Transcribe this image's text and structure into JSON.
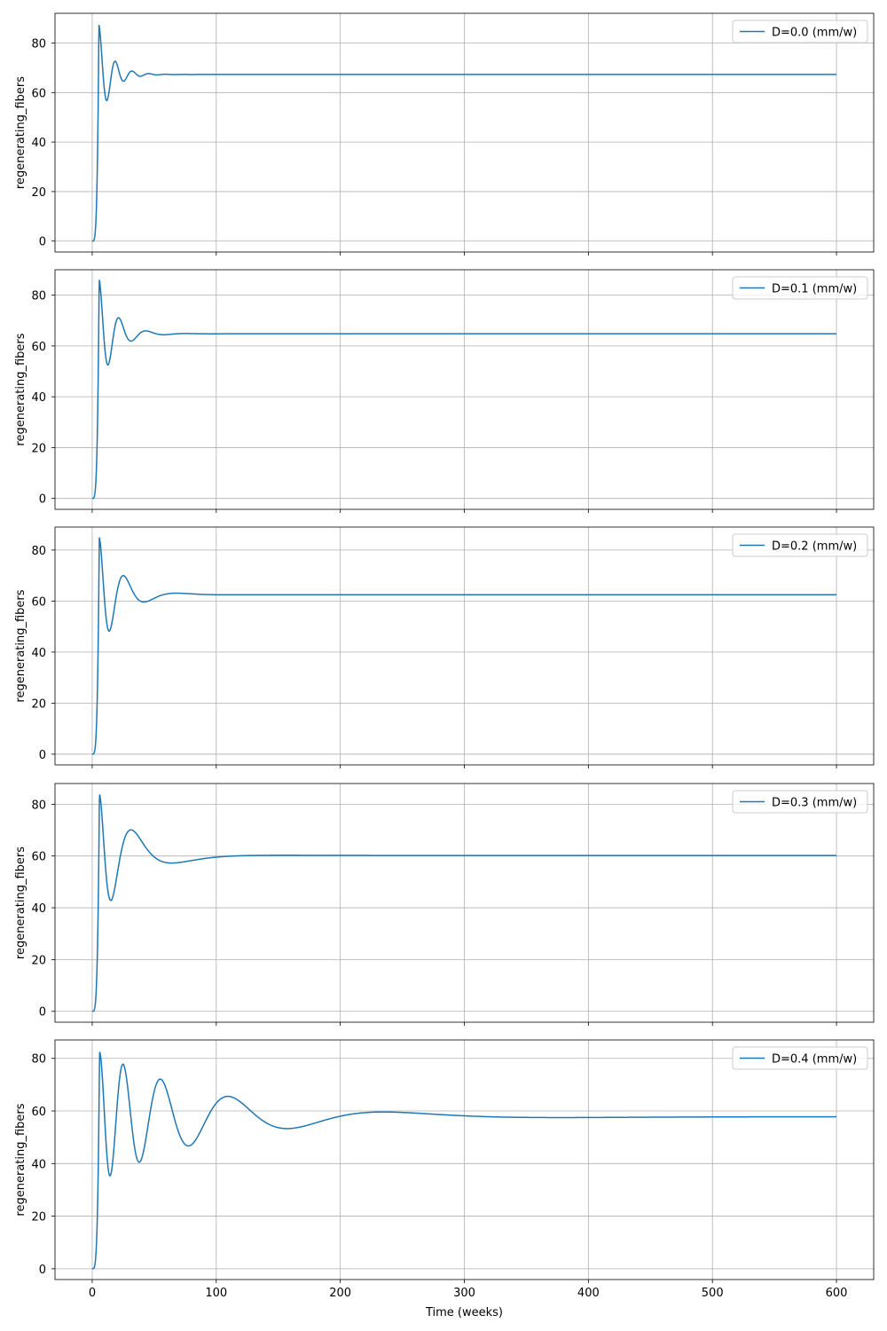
{
  "chart_data": [
    {
      "type": "line",
      "ylabel": "regenerating_fibers",
      "xlabel": "",
      "legend": "top-right",
      "grid": true,
      "xlim": [
        -30,
        630
      ],
      "ylim": [
        -4.4,
        92
      ],
      "yticks": [
        0,
        20,
        40,
        60,
        80
      ],
      "xticks": [
        0,
        100,
        200,
        300,
        400,
        500,
        600
      ],
      "color": "#1f77b4",
      "series": [
        {
          "name": "D=0.0 (mm/w)",
          "peak": 87.5,
          "peak_t": 5.4,
          "steady": 67.3,
          "first_amp": 16,
          "decay_weeks": 10,
          "period_start": 13.5,
          "period_growth": 0
        }
      ],
      "x": [
        0,
        2,
        4,
        5.4,
        10,
        13,
        18,
        24,
        31,
        37,
        44,
        60,
        80,
        120,
        300,
        600
      ],
      "y": [
        0,
        12,
        70,
        87.5,
        67,
        57.5,
        73,
        65,
        69,
        66,
        68,
        67.2,
        67.3,
        67.3,
        67.3,
        67.3
      ]
    },
    {
      "type": "line",
      "ylabel": "regenerating_fibers",
      "xlabel": "",
      "legend": "top-right",
      "grid": true,
      "xlim": [
        -30,
        630
      ],
      "ylim": [
        -4.3,
        90
      ],
      "yticks": [
        0,
        20,
        40,
        60,
        80
      ],
      "xticks": [
        0,
        100,
        200,
        300,
        400,
        500,
        600
      ],
      "color": "#1f77b4",
      "series": [
        {
          "name": "D=0.1 (mm/w)",
          "peak": 86.3,
          "peak_t": 5.6,
          "steady": 64.8,
          "first_amp": 16.5,
          "decay_weeks": 13,
          "period_start": 14,
          "period_growth": 0.01
        }
      ],
      "x": [
        0,
        2,
        4,
        5.6,
        10,
        14,
        19,
        25,
        33,
        39,
        47,
        60,
        90,
        120,
        300,
        600
      ],
      "y": [
        0,
        10,
        65,
        86.3,
        66,
        52,
        72,
        60.5,
        68,
        63,
        66,
        64.5,
        64.8,
        64.8,
        64.8,
        64.8
      ]
    },
    {
      "type": "line",
      "ylabel": "regenerating_fibers",
      "xlabel": "",
      "legend": "top-right",
      "grid": true,
      "xlim": [
        -30,
        630
      ],
      "ylim": [
        -4.2,
        89
      ],
      "yticks": [
        0,
        20,
        40,
        60,
        80
      ],
      "xticks": [
        0,
        100,
        200,
        300,
        400,
        500,
        600
      ],
      "color": "#1f77b4",
      "series": [
        {
          "name": "D=0.2 (mm/w)",
          "peak": 85,
          "peak_t": 5.7,
          "steady": 62.5,
          "first_amp": 17,
          "decay_weeks": 18,
          "period_start": 14.5,
          "period_growth": 0.02
        }
      ],
      "x": [
        0,
        2,
        4,
        5.7,
        10,
        15,
        20,
        27,
        34,
        41,
        48,
        60,
        80,
        120,
        300,
        600
      ],
      "y": [
        0,
        9,
        60,
        85,
        63,
        47,
        72,
        56,
        67,
        59.5,
        65,
        61.5,
        62.5,
        62.5,
        62.5,
        62.5
      ]
    },
    {
      "type": "line",
      "ylabel": "regenerating_fibers",
      "xlabel": "",
      "legend": "top-right",
      "grid": true,
      "xlim": [
        -30,
        630
      ],
      "ylim": [
        -4.2,
        88
      ],
      "yticks": [
        0,
        20,
        40,
        60,
        80
      ],
      "xticks": [
        0,
        100,
        200,
        300,
        400,
        500,
        600
      ],
      "color": "#1f77b4",
      "series": [
        {
          "name": "D=0.3 (mm/w)",
          "peak": 84,
          "peak_t": 5.8,
          "steady": 60.2,
          "first_amp": 19,
          "decay_weeks": 30,
          "period_start": 15,
          "period_growth": 0.03
        }
      ],
      "x": [
        0,
        2,
        4,
        5.8,
        10,
        17,
        22,
        30,
        36,
        45,
        52,
        80,
        120,
        200,
        400,
        600
      ],
      "y": [
        0,
        8,
        55,
        84,
        62,
        41.5,
        72,
        50,
        67.5,
        54.5,
        65,
        59.5,
        60.5,
        60.2,
        60.2,
        60.2
      ]
    },
    {
      "type": "line",
      "ylabel": "regenerating_fibers",
      "xlabel": "Time (weeks)",
      "legend": "top-right",
      "grid": true,
      "xlim": [
        -30,
        630
      ],
      "ylim": [
        -4.1,
        87
      ],
      "yticks": [
        0,
        20,
        40,
        60,
        80
      ],
      "xticks": [
        0,
        100,
        200,
        300,
        400,
        500,
        600
      ],
      "color": "#1f77b4",
      "series": [
        {
          "name": "D=0.4 (mm/w)",
          "peak": 82.5,
          "peak_t": 5.9,
          "steady": 57.8,
          "first_amp": 23,
          "decay_weeks": 90,
          "period_start": 15.5,
          "period_growth": 0.012
        }
      ],
      "x": [
        0,
        2,
        4,
        5.9,
        10,
        18,
        24,
        35,
        40,
        50,
        100,
        200,
        300,
        400,
        500,
        600
      ],
      "y": [
        0,
        7,
        50,
        82.5,
        60,
        35,
        72.5,
        41,
        69.5,
        45,
        63,
        60,
        58.5,
        58,
        57.8,
        57.8
      ]
    }
  ],
  "xtick_labels": [
    "0",
    "100",
    "200",
    "300",
    "400",
    "500",
    "600"
  ],
  "ytick_labels": [
    "0",
    "20",
    "40",
    "60",
    "80"
  ]
}
